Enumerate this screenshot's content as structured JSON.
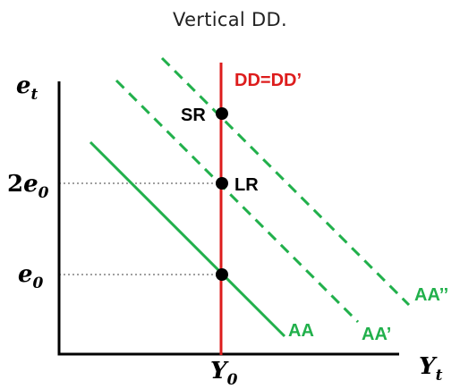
{
  "title": "Vertical DD.",
  "axes": {
    "y_label": {
      "base": "e",
      "sub": "t"
    },
    "x_label": {
      "base": "Y",
      "sub": "t"
    }
  },
  "ticks": {
    "y": [
      {
        "coef": "2",
        "base": "e",
        "sub": "0"
      },
      {
        "coef": "",
        "base": "e",
        "sub": "0"
      }
    ],
    "x": [
      {
        "base": "Y",
        "sub": "0"
      }
    ]
  },
  "curves": {
    "dd": {
      "label": "DD=DD’",
      "color": "#dd1c1c"
    },
    "aa": {
      "label": "AA",
      "color": "#21b04b"
    },
    "aa_prime": {
      "label": "AA’",
      "color": "#21b04b"
    },
    "aa_double": {
      "label": "AA’’",
      "color": "#21b04b"
    }
  },
  "points": {
    "sr": {
      "label": "SR"
    },
    "lr": {
      "label": "LR"
    }
  },
  "colors": {
    "axis": "#000000",
    "guide": "#808080",
    "point": "#000000"
  }
}
